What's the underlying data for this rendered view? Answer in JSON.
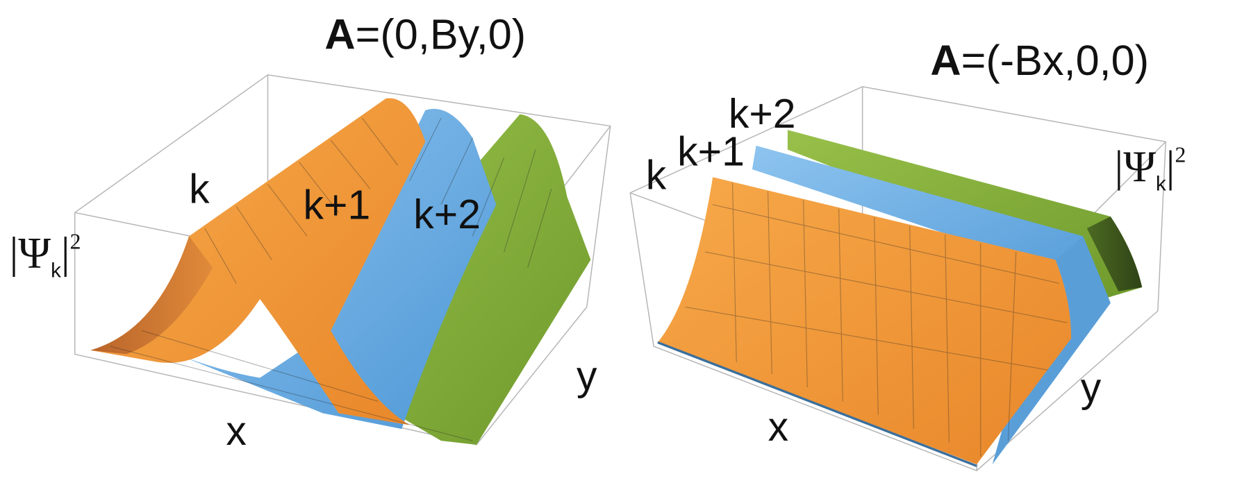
{
  "panels": [
    {
      "title": {
        "symbol": "A",
        "rest": "=(0,By,0)"
      },
      "curves": [
        "k",
        "k+1",
        "k+2"
      ],
      "z_label": {
        "open": "|Ψ",
        "subscript": "k",
        "close": "|",
        "superscript": "2"
      },
      "x_label": "x",
      "y_label": "y"
    },
    {
      "title": {
        "symbol": "A",
        "rest": "=(-Bx,0,0)"
      },
      "curves": [
        "k",
        "k+1",
        "k+2"
      ],
      "z_label": {
        "open": "|Ψ",
        "subscript": "k",
        "close": "|",
        "superscript": "2"
      },
      "x_label": "x",
      "y_label": "y"
    }
  ]
}
